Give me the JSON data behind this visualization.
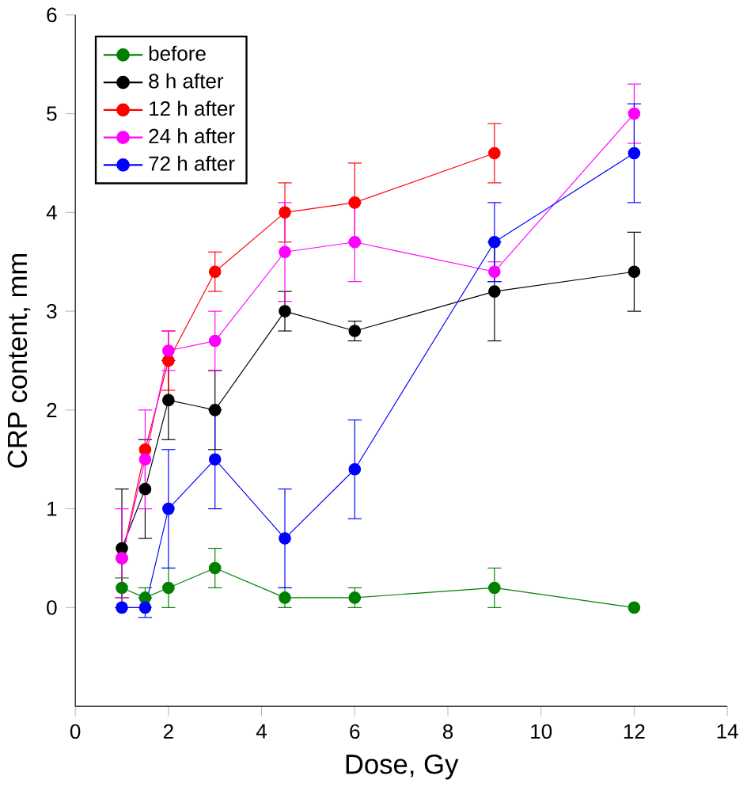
{
  "chart_data": {
    "type": "line",
    "xlabel": "Dose, Gy",
    "ylabel": "CRP content, mm",
    "x": [
      1,
      1.5,
      2,
      3,
      4.5,
      6,
      9,
      12
    ],
    "xlim": [
      0,
      14
    ],
    "xticks": [
      0,
      2,
      4,
      6,
      8,
      10,
      12,
      14
    ],
    "ylim": [
      -1,
      6
    ],
    "yticks": [
      0,
      1,
      2,
      3,
      4,
      5,
      6
    ],
    "marker": "circle",
    "legend": "top left",
    "grid": false,
    "series": [
      {
        "name": "before",
        "color": "#008000",
        "values": [
          0.2,
          0.1,
          0.2,
          0.4,
          0.1,
          0.1,
          0.2,
          0.0
        ],
        "errors": [
          0.1,
          0.1,
          0.2,
          0.2,
          0.1,
          0.1,
          0.2,
          null
        ]
      },
      {
        "name": "8 h after",
        "color": "#000000",
        "values": [
          0.6,
          1.2,
          2.1,
          2.0,
          3.0,
          2.8,
          3.2,
          3.4
        ],
        "errors": [
          0.6,
          0.5,
          0.4,
          0.4,
          0.2,
          0.1,
          0.5,
          0.4
        ]
      },
      {
        "name": "12 h after",
        "color": "#ff0000",
        "values": [
          0.5,
          1.6,
          2.5,
          3.4,
          4.0,
          4.1,
          4.6,
          null
        ],
        "errors": [
          null,
          null,
          0.3,
          0.2,
          0.3,
          0.4,
          0.3,
          null
        ]
      },
      {
        "name": "24 h after",
        "color": "#ff00ff",
        "values": [
          0.5,
          1.5,
          2.6,
          2.7,
          3.6,
          3.7,
          3.4,
          5.0
        ],
        "errors": [
          [
            0.1,
            1.0
          ],
          0.5,
          0.2,
          0.3,
          0.5,
          0.4,
          0.1,
          0.3
        ]
      },
      {
        "name": "72 h after",
        "color": "#0000ff",
        "values": [
          0.0,
          0.0,
          1.0,
          1.5,
          0.7,
          1.4,
          3.7,
          4.6
        ],
        "errors": [
          null,
          0.1,
          0.6,
          0.5,
          0.5,
          0.5,
          0.4,
          0.5
        ]
      }
    ]
  }
}
